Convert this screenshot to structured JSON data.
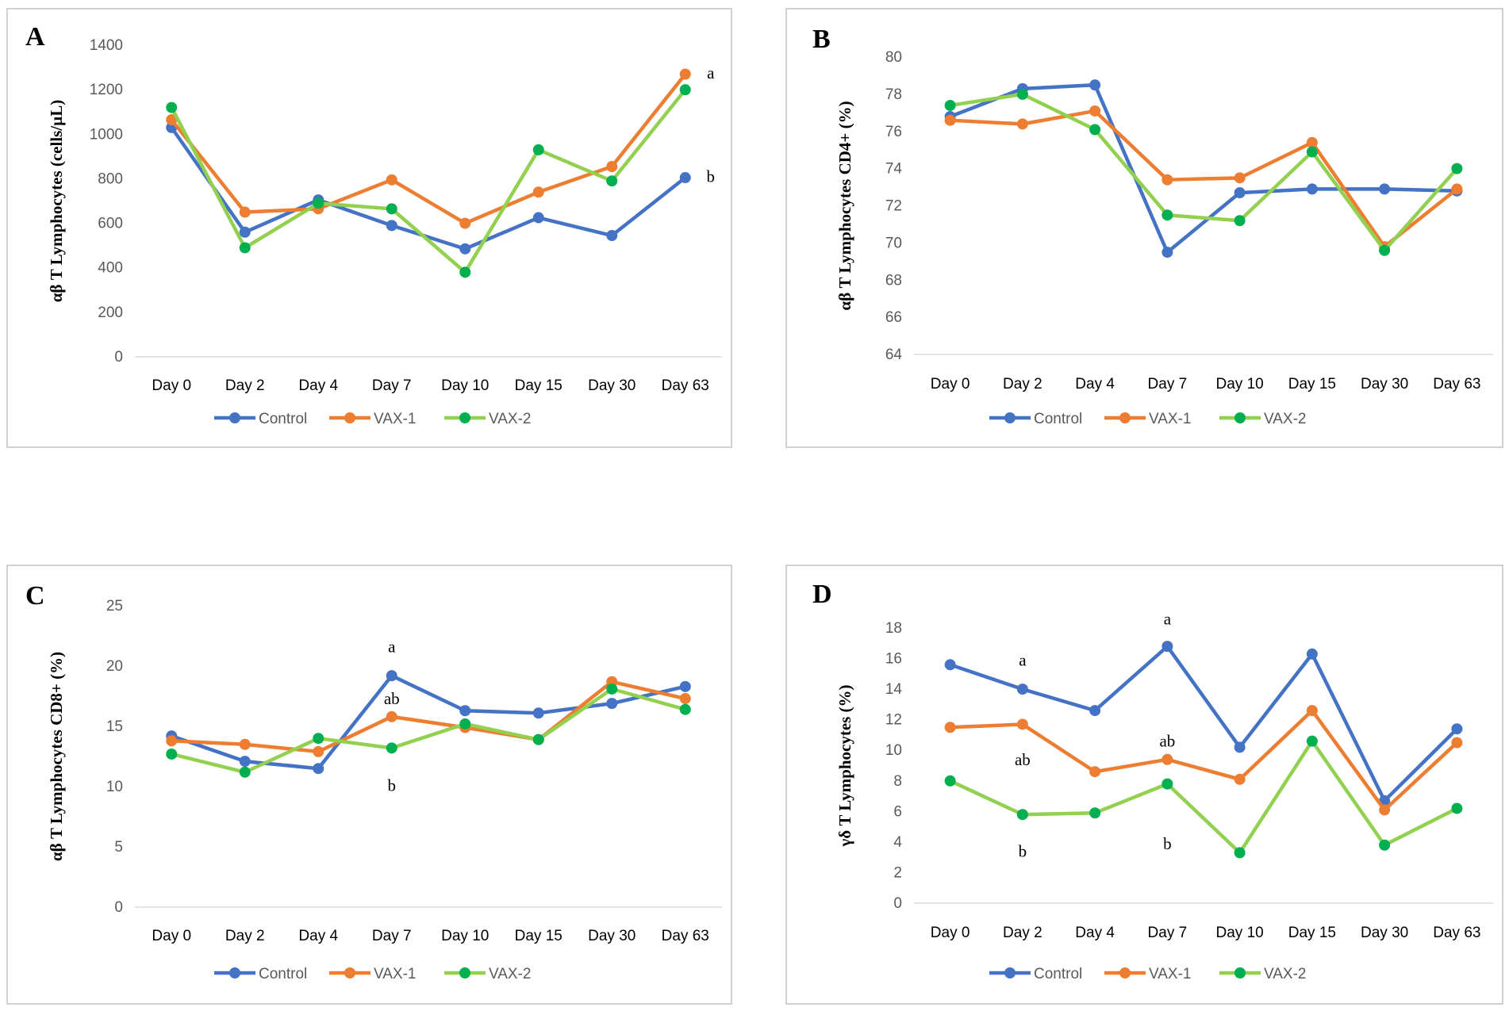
{
  "colors": {
    "Control": "#4472C4",
    "VAX-1": "#ED7D31",
    "VAX-2-line": "#92D050",
    "VAX-2-marker": "#00B050"
  },
  "chart_data": [
    {
      "panel": "A",
      "type": "line",
      "ylabel": "αβ T Lymphocytes  (cells/µL)",
      "categories": [
        "Day 0",
        "Day 2",
        "Day 4",
        "Day 7",
        "Day 10",
        "Day 15",
        "Day 30",
        "Day 63"
      ],
      "ylim": [
        0,
        1400
      ],
      "yticks": [
        0,
        200,
        400,
        600,
        800,
        1000,
        1200,
        1400
      ],
      "series": [
        {
          "name": "Control",
          "values": [
            1030,
            560,
            705,
            590,
            485,
            625,
            545,
            805
          ]
        },
        {
          "name": "VAX-1",
          "values": [
            1065,
            650,
            665,
            795,
            600,
            740,
            855,
            1270
          ]
        },
        {
          "name": "VAX-2",
          "values": [
            1120,
            490,
            690,
            665,
            380,
            930,
            790,
            1200
          ]
        }
      ],
      "annotations": [
        {
          "text": "a",
          "x": "Day 63",
          "y": 1275
        },
        {
          "text": "b",
          "x": "Day 63",
          "y": 810
        }
      ]
    },
    {
      "panel": "B",
      "type": "line",
      "ylabel": "αβ T Lymphocytes CD4+ (%)",
      "categories": [
        "Day 0",
        "Day 2",
        "Day 4",
        "Day 7",
        "Day 10",
        "Day 15",
        "Day 30",
        "Day 63"
      ],
      "ylim": [
        64,
        80
      ],
      "yticks": [
        64,
        66,
        68,
        70,
        72,
        74,
        76,
        78,
        80
      ],
      "series": [
        {
          "name": "Control",
          "values": [
            76.8,
            78.3,
            78.5,
            69.5,
            72.7,
            72.9,
            72.9,
            72.8
          ]
        },
        {
          "name": "VAX-1",
          "values": [
            76.6,
            76.4,
            77.1,
            73.4,
            73.5,
            75.4,
            69.8,
            72.9
          ]
        },
        {
          "name": "VAX-2",
          "values": [
            77.4,
            78.0,
            76.1,
            71.5,
            71.2,
            74.9,
            69.6,
            74.0
          ]
        }
      ],
      "annotations": []
    },
    {
      "panel": "C",
      "type": "line",
      "ylabel": "αβ T Lymphocytes CD8+ (%)",
      "categories": [
        "Day 0",
        "Day 2",
        "Day 4",
        "Day 7",
        "Day 10",
        "Day 15",
        "Day 30",
        "Day 63"
      ],
      "ylim": [
        0,
        25
      ],
      "yticks": [
        0,
        5,
        10,
        15,
        20,
        25
      ],
      "series": [
        {
          "name": "Control",
          "values": [
            14.2,
            12.1,
            11.5,
            19.2,
            16.3,
            16.1,
            16.9,
            18.3
          ]
        },
        {
          "name": "VAX-1",
          "values": [
            13.8,
            13.5,
            12.9,
            15.8,
            14.9,
            13.9,
            18.7,
            17.3
          ]
        },
        {
          "name": "VAX-2",
          "values": [
            12.7,
            11.2,
            14.0,
            13.2,
            15.2,
            13.9,
            18.1,
            16.4
          ]
        }
      ],
      "annotations": [
        {
          "text": "a",
          "x": "Day 7",
          "y": 21.6
        },
        {
          "text": "ab",
          "x": "Day 7",
          "y": 17.3
        },
        {
          "text": "b",
          "x": "Day 7",
          "y": 10.1
        }
      ]
    },
    {
      "panel": "D",
      "type": "line",
      "ylabel": "γδ T Lymphocytes (%)",
      "categories": [
        "Day 0",
        "Day 2",
        "Day 4",
        "Day 7",
        "Day 10",
        "Day 15",
        "Day 30",
        "Day 63"
      ],
      "ylim": [
        0,
        18
      ],
      "yticks": [
        0,
        2,
        4,
        6,
        8,
        10,
        12,
        14,
        16,
        18
      ],
      "series": [
        {
          "name": "Control",
          "values": [
            15.6,
            14.0,
            12.6,
            16.8,
            10.2,
            16.3,
            6.7,
            11.4
          ]
        },
        {
          "name": "VAX-1",
          "values": [
            11.5,
            11.7,
            8.6,
            9.4,
            8.1,
            12.6,
            6.1,
            10.5
          ]
        },
        {
          "name": "VAX-2",
          "values": [
            8.0,
            5.8,
            5.9,
            7.8,
            3.3,
            10.6,
            3.8,
            6.2
          ]
        }
      ],
      "annotations": [
        {
          "text": "a",
          "x": "Day 2",
          "y": 15.9
        },
        {
          "text": "ab",
          "x": "Day 2",
          "y": 9.4
        },
        {
          "text": "b",
          "x": "Day 2",
          "y": 3.4
        },
        {
          "text": "a",
          "x": "Day 7",
          "y": 18.6
        },
        {
          "text": "ab",
          "x": "Day 7",
          "y": 10.6
        },
        {
          "text": "b",
          "x": "Day 7",
          "y": 3.9
        }
      ]
    }
  ]
}
